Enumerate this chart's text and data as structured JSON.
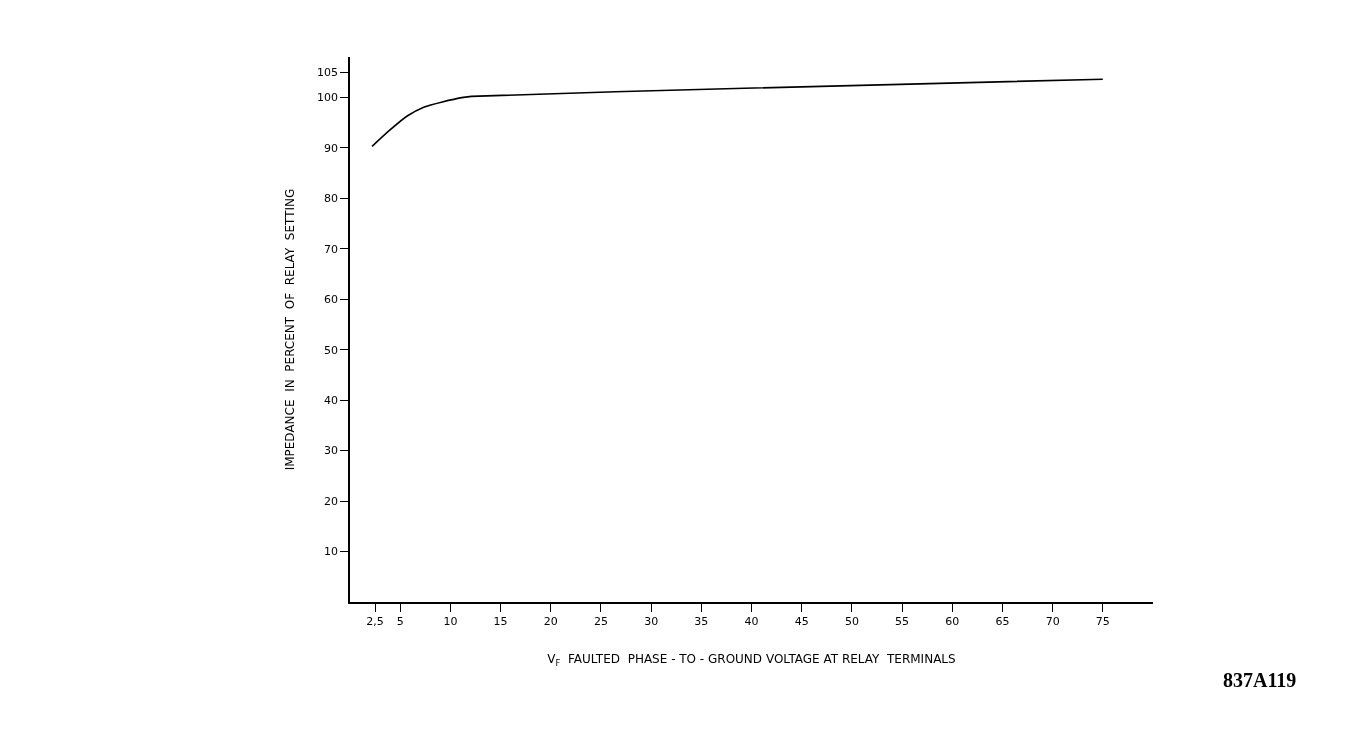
{
  "chart_data": {
    "type": "line",
    "xlabel": "V$_{F}$  FAULTED  PHASE - TO - GROUND VOLTAGE AT RELAY  TERMINALS",
    "ylabel": "IMPEDANCE  IN  PERCENT  OF  RELAY  SETTING",
    "x": [
      2.2,
      3.9,
      5.7,
      7.4,
      9.2,
      11.3,
      12.1,
      39.3,
      75
    ],
    "series": [
      {
        "color": "#000000",
        "values": [
          90.3,
          93.4,
          96.3,
          98.1,
          99.1,
          100,
          100.2,
          101.8,
          103.6
        ]
      }
    ],
    "xlim": [
      0,
      80
    ],
    "xticks": [
      {
        "value": 2.5,
        "label": "2,5"
      },
      5,
      10,
      15,
      20,
      25,
      30,
      35,
      40,
      45,
      50,
      55,
      60,
      65,
      70,
      75
    ],
    "ylim": [
      0,
      108
    ],
    "yticks": [
      10,
      20,
      30,
      40,
      50,
      60,
      70,
      80,
      90,
      100,
      105
    ],
    "marker": "none",
    "line_style": "solid",
    "annotations": [
      "837A119"
    ]
  }
}
